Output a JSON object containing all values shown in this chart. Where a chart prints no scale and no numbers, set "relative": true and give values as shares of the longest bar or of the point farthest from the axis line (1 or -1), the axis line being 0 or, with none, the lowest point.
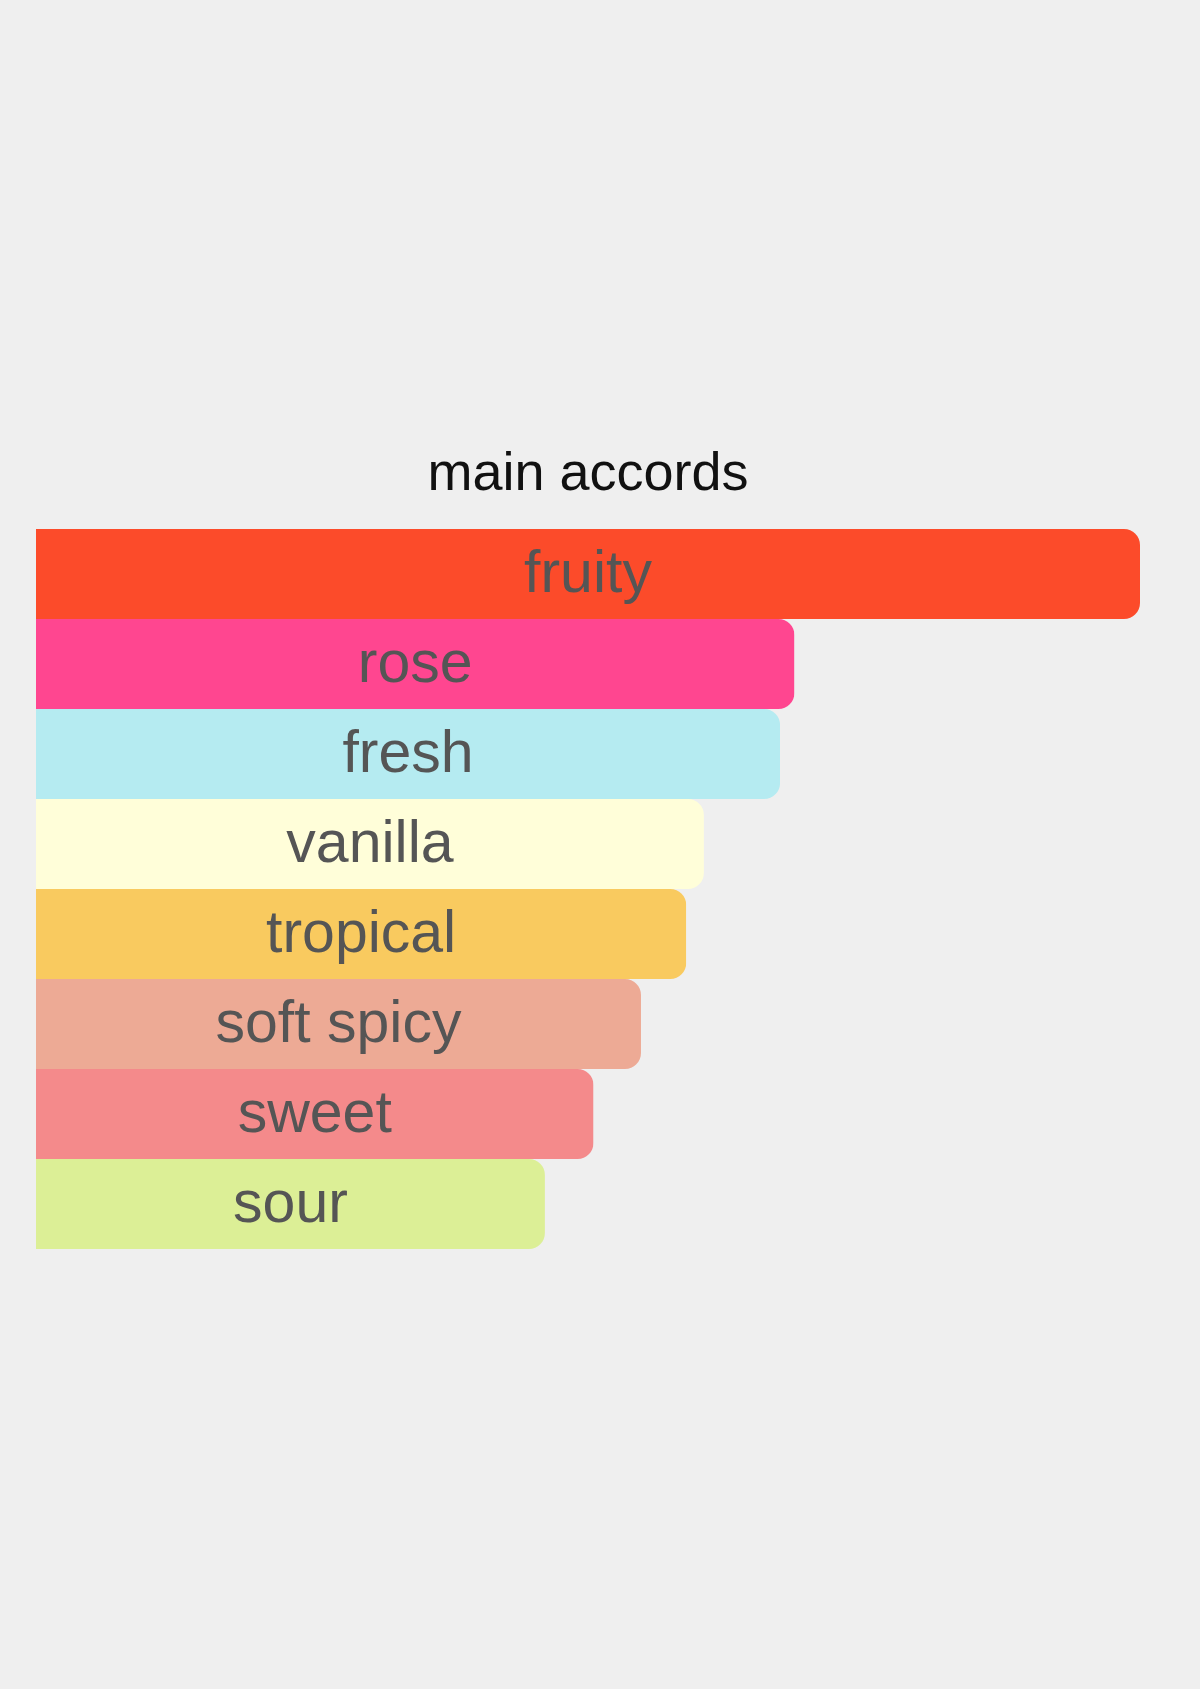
{
  "chart_data": {
    "type": "bar",
    "orientation": "horizontal",
    "relative": true,
    "title": "main accords",
    "categories": [
      "fruity",
      "rose",
      "fresh",
      "vanilla",
      "tropical",
      "soft spicy",
      "sweet",
      "sour"
    ],
    "values": [
      1,
      0.687,
      0.674,
      0.605,
      0.589,
      0.548,
      0.505,
      0.461
    ],
    "colors": [
      "#fc4b2a",
      "#ff4690",
      "#b5ebf1",
      "#fffed9",
      "#f9ca5f",
      "#edaa95",
      "#f48a8b",
      "#dcef96"
    ]
  }
}
